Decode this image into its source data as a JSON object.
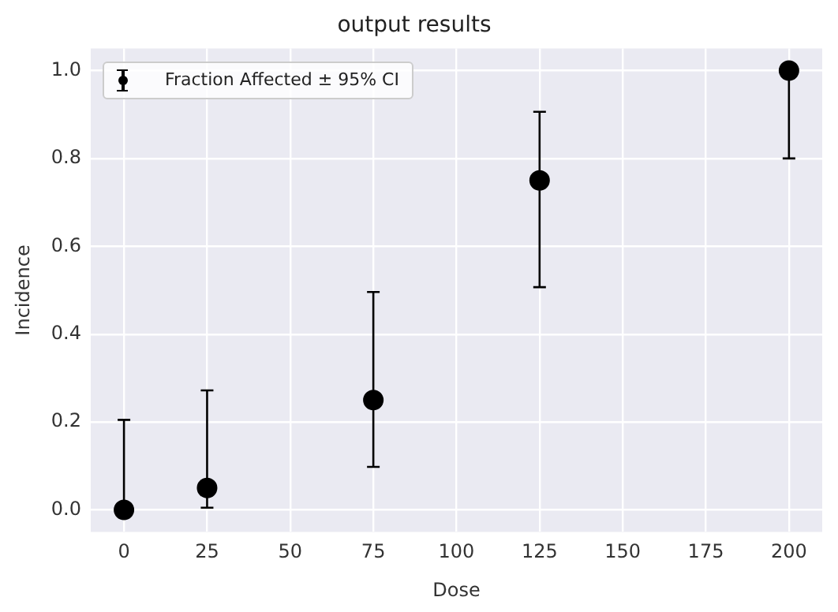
{
  "chart_data": {
    "type": "scatter",
    "title": "output results",
    "xlabel": "Dose",
    "ylabel": "Incidence",
    "x": [
      0,
      25,
      75,
      125,
      200
    ],
    "series": [
      {
        "name": "Fraction Affected ± 95% CI",
        "color": "#000000",
        "values": [
          0,
          0.05,
          0.25,
          0.75,
          1.0
        ],
        "errors": [
          [
            0,
            0.205
          ],
          [
            0.005,
            0.272
          ],
          [
            0.098,
            0.496
          ],
          [
            0.507,
            0.906
          ],
          [
            0.8,
            1.0
          ]
        ]
      }
    ],
    "xlim": [
      -10,
      210
    ],
    "xticks": [
      0,
      25,
      50,
      75,
      100,
      125,
      150,
      175,
      200
    ],
    "ylim": [
      -0.05,
      1.05
    ],
    "yticks": [
      {
        "value": 0,
        "label": "0.0"
      },
      0.2,
      0.4,
      0.6,
      0.8,
      {
        "value": 1,
        "label": "1.0"
      }
    ],
    "grid": true,
    "legend": "top left",
    "marker": "circle"
  }
}
